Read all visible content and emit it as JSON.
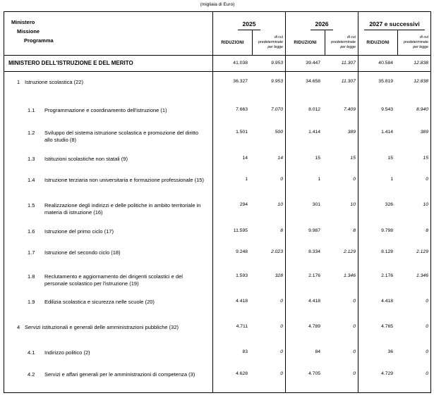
{
  "caption": "(migliaia di Euro)",
  "colors": {
    "background": "#ffffff",
    "border": "#000000",
    "text": "#000000"
  },
  "header": {
    "col1_lines": [
      "Ministero",
      "Missione",
      "Programma"
    ],
    "year_groups": [
      "2025",
      "2026",
      "2027 e successivi"
    ],
    "sub_riduzioni": "RIDUZIONI",
    "sub_dicui": "di cui\npredeterminate\nper legge"
  },
  "ministry_row": {
    "label": "MINISTERO DELL'ISTRUZIONE E DEL MERITO",
    "values": [
      "41.038",
      "9.953",
      "39.447",
      "11.307",
      "40.584",
      "12.838"
    ]
  },
  "rows": [
    {
      "num": "1",
      "level": 1,
      "label": "Istruzione scolastica (22)",
      "values": [
        "36.327",
        "9.953",
        "34.658",
        "11.307",
        "35.819",
        "12.838"
      ]
    },
    {
      "num": "1.1",
      "level": 2,
      "label": "Programmazione e coordinamento dell'istruzione (1)",
      "values": [
        "7.663",
        "7.070",
        "8.012",
        "7.409",
        "9.543",
        "8.940"
      ]
    },
    {
      "num": "1.2",
      "level": 2,
      "label": "Sviluppo del sistema istruzione scolastica e promozione del diritto allo studio (8)",
      "values": [
        "1.501",
        "500",
        "1.414",
        "389",
        "1.414",
        "389"
      ]
    },
    {
      "num": "1.3",
      "level": 2,
      "label": "Istituzioni scolastiche non statali (9)",
      "values": [
        "14",
        "14",
        "15",
        "15",
        "15",
        "15"
      ]
    },
    {
      "num": "1.4",
      "level": 2,
      "label": "Istruzione terziaria non universitaria e formazione professionale (15)",
      "values": [
        "1",
        "0",
        "1",
        "0",
        "1",
        "0"
      ]
    },
    {
      "num": "1.5",
      "level": 2,
      "label": "Realizzazione degli indirizzi e delle politiche in ambito territoriale in materia di istruzione (16)",
      "values": [
        "294",
        "10",
        "301",
        "10",
        "326",
        "10"
      ]
    },
    {
      "num": "1.6",
      "level": 2,
      "label": "Istruzione del primo ciclo (17)",
      "values": [
        "11.595",
        "8",
        "9.987",
        "8",
        "9.798",
        "8"
      ]
    },
    {
      "num": "1.7",
      "level": 2,
      "label": "Istruzione del secondo ciclo (18)",
      "values": [
        "9.248",
        "2.023",
        "8.334",
        "2.129",
        "8.128",
        "2.129"
      ]
    },
    {
      "num": "1.8",
      "level": 2,
      "label": "Reclutamento e aggiornamento dei dirigenti scolastici e del personale scolastico per l'istruzione (19)",
      "values": [
        "1.593",
        "328",
        "2.176",
        "1.346",
        "2.176",
        "1.346"
      ]
    },
    {
      "num": "1.9",
      "level": 2,
      "label": "Edilizia scolastica e sicurezza nelle scuole (20)",
      "values": [
        "4.418",
        "0",
        "4.418",
        "0",
        "4.418",
        "0"
      ]
    },
    {
      "num": "4",
      "level": 1,
      "label": "Servizi istituzionali e generali delle amministrazioni pubbliche (32)",
      "values": [
        "4.711",
        "0",
        "4.789",
        "0",
        "4.765",
        "0"
      ]
    },
    {
      "num": "4.1",
      "level": 2,
      "label": "Indirizzo politico (2)",
      "values": [
        "83",
        "0",
        "84",
        "0",
        "36",
        "0"
      ]
    },
    {
      "num": "4.2",
      "level": 2,
      "label": "Servizi e affari generali per le amministrazioni di competenza (3)",
      "values": [
        "4.628",
        "0",
        "4.705",
        "0",
        "4.729",
        "0"
      ]
    }
  ]
}
